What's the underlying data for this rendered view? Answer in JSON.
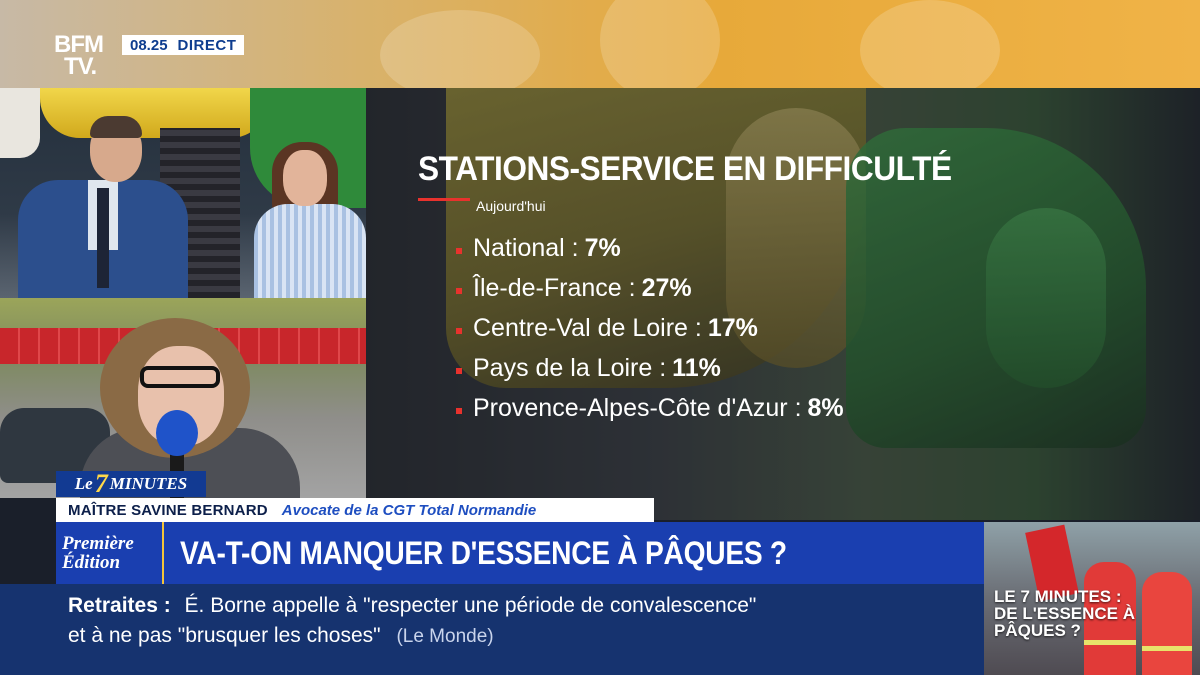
{
  "channel": {
    "logo_line1": "BFM",
    "logo_line2": "TV.",
    "time": "08.25",
    "live": "DIRECT"
  },
  "infographic": {
    "title": "STATIONS-SERVICE EN DIFFICULTÉ",
    "subtitle": "Aujourd'hui",
    "items": [
      {
        "label": "National :",
        "value": "7%"
      },
      {
        "label": "Île-de-France :",
        "value": "27%"
      },
      {
        "label": "Centre-Val de Loire :",
        "value": "17%"
      },
      {
        "label": "Pays de la Loire :",
        "value": "11%"
      },
      {
        "label": "Provence-Alpes-Côte d'Azur :",
        "value": "8%"
      }
    ]
  },
  "show": {
    "prefix": "Le",
    "number": "7",
    "name": "MINUTES"
  },
  "guest": {
    "name": "MAÎTRE SAVINE BERNARD",
    "role": "Avocate de la CGT Total Normandie"
  },
  "edition": {
    "line1": "Première",
    "line2": "Édition"
  },
  "headline": "VA-T-ON MANQUER D'ESSENCE À PÂQUES ?",
  "ticker": {
    "topic": "Retraites :",
    "line1": "É. Borne appelle à \"respecter une période de convalescence\"",
    "line2": "et à ne pas \"brusquer les choses\"",
    "source": "(Le Monde)"
  },
  "thumbnail": {
    "caption_line1": "LE 7 MINUTES :",
    "caption_line2": "DE L'ESSENCE À",
    "caption_line3": "PÂQUES ?"
  },
  "colors": {
    "accent_red": "#e8322d",
    "bfm_blue": "#1a3fb0",
    "ticker_blue": "#16336f"
  }
}
